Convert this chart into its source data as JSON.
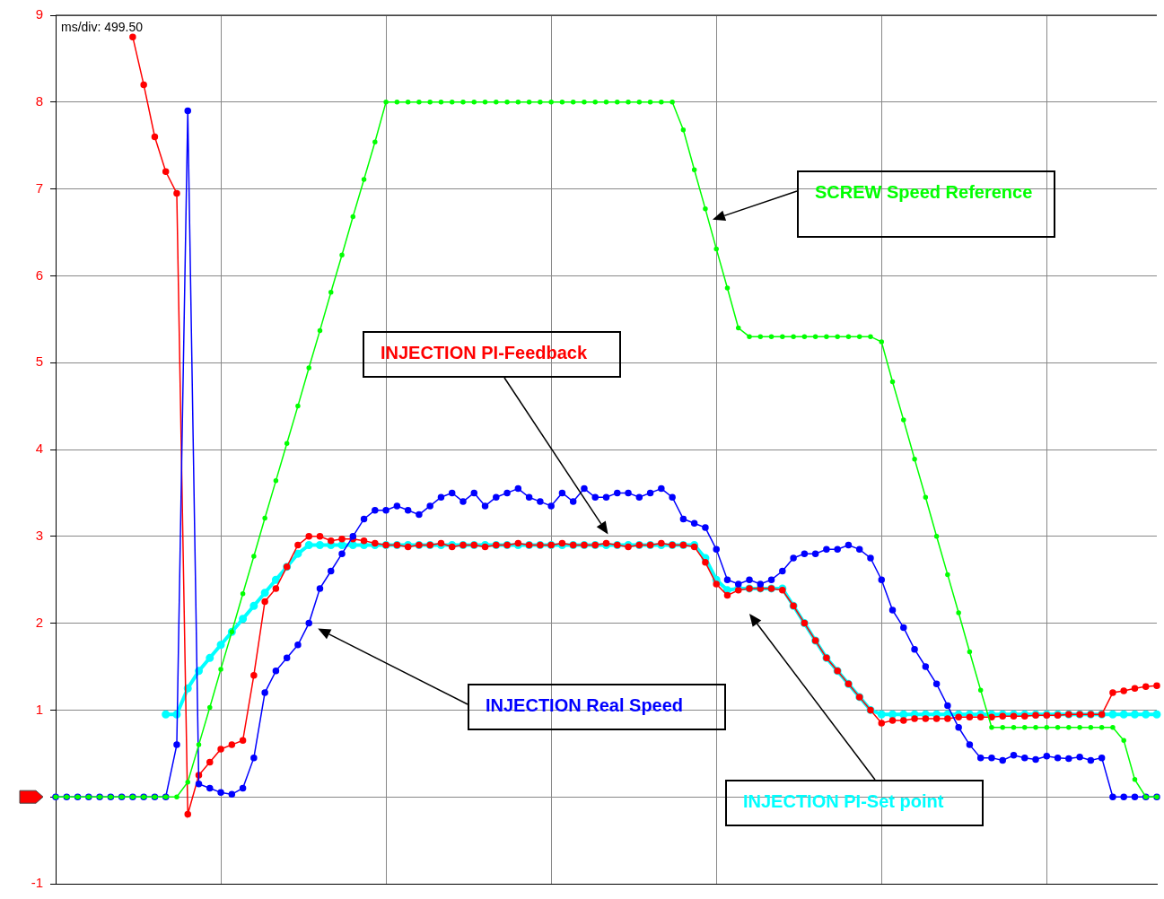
{
  "chart_data": {
    "type": "line",
    "categories": [
      null,
      null,
      null,
      null,
      null,
      null,
      null,
      null,
      null,
      null,
      null,
      null,
      null,
      null,
      null,
      null,
      null,
      null,
      null,
      null,
      null,
      null,
      null,
      null,
      null,
      null,
      null,
      null,
      null,
      null,
      null,
      null,
      null,
      null,
      null,
      null,
      null,
      null,
      null,
      null,
      null,
      null,
      null,
      null,
      null,
      null,
      null,
      null,
      null,
      null,
      null,
      null,
      null,
      null,
      null,
      null,
      null,
      null,
      null,
      null,
      null,
      null,
      null,
      null,
      null,
      null,
      null,
      null,
      null,
      null,
      null,
      null,
      null,
      null,
      null,
      null,
      null,
      null,
      null,
      null,
      null,
      null,
      null,
      null,
      null,
      null,
      null,
      null,
      null,
      null,
      null,
      null,
      null,
      null,
      null,
      null,
      null,
      null,
      null,
      null,
      null
    ],
    "ylim": [
      -1,
      9
    ],
    "yticks": [
      -1,
      {
        "value": 0,
        "label": null
      },
      1,
      2,
      3,
      4,
      5,
      6,
      7,
      8,
      9
    ],
    "tick_labels": "y",
    "grid": true,
    "legend": false,
    "marker": "circle",
    "annotations": [
      "ms/div: 499.50"
    ],
    "series": [
      {
        "name": "INJECTION PI-Set point",
        "color": "#00ffff",
        "values": [
          null,
          null,
          null,
          null,
          null,
          null,
          null,
          null,
          null,
          null,
          0.95,
          0.95,
          1.25,
          1.45,
          1.6,
          1.75,
          1.9,
          2.05,
          2.2,
          2.35,
          2.5,
          2.65,
          2.8,
          2.9,
          2.9,
          2.9,
          2.9,
          2.9,
          2.9,
          2.9,
          2.9,
          2.9,
          2.9,
          2.9,
          2.9,
          2.9,
          2.9,
          2.9,
          2.9,
          2.9,
          2.9,
          2.9,
          2.9,
          2.9,
          2.9,
          2.9,
          2.9,
          2.9,
          2.9,
          2.9,
          2.9,
          2.9,
          2.9,
          2.9,
          2.9,
          2.9,
          2.9,
          2.9,
          2.9,
          2.75,
          2.5,
          2.38,
          2.4,
          2.4,
          2.4,
          2.4,
          2.4,
          2.2,
          2.0,
          1.8,
          1.6,
          1.45,
          1.3,
          1.15,
          1.0,
          0.95,
          0.95,
          0.95,
          0.95,
          0.95,
          0.95,
          0.95,
          0.95,
          0.95,
          0.95,
          0.95,
          0.95,
          0.95,
          0.95,
          0.95,
          0.95,
          0.95,
          0.95,
          0.95,
          0.95,
          0.95,
          0.95,
          0.95,
          0.95,
          0.95,
          0.95
        ]
      },
      {
        "name": "SCREW Speed Reference",
        "color": "#00ff00",
        "values": [
          0,
          0,
          0,
          0,
          0,
          0,
          0,
          0,
          0,
          0,
          0,
          0,
          0.17,
          0.6,
          1.03,
          1.47,
          1.9,
          2.34,
          2.77,
          3.21,
          3.64,
          4.07,
          4.5,
          4.94,
          5.37,
          5.81,
          6.24,
          6.68,
          7.11,
          7.54,
          8,
          8,
          8,
          8,
          8,
          8,
          8,
          8,
          8,
          8,
          8,
          8,
          8,
          8,
          8,
          8,
          8,
          8,
          8,
          8,
          8,
          8,
          8,
          8,
          8,
          8,
          8,
          7.68,
          7.22,
          6.77,
          6.31,
          5.86,
          5.4,
          5.3,
          5.3,
          5.3,
          5.3,
          5.3,
          5.3,
          5.3,
          5.3,
          5.3,
          5.3,
          5.3,
          5.3,
          5.24,
          4.78,
          4.34,
          3.89,
          3.45,
          3.0,
          2.56,
          2.12,
          1.67,
          1.23,
          0.8,
          0.8,
          0.8,
          0.8,
          0.8,
          0.8,
          0.8,
          0.8,
          0.8,
          0.8,
          0.8,
          0.8,
          0.65,
          0.2,
          0,
          0
        ]
      },
      {
        "name": "INJECTION PI-Feedback",
        "color": "#ff0000",
        "values": [
          null,
          null,
          null,
          null,
          null,
          null,
          null,
          8.75,
          8.2,
          7.6,
          7.2,
          6.95,
          -0.2,
          0.25,
          0.4,
          0.55,
          0.6,
          0.65,
          1.4,
          2.25,
          2.4,
          2.65,
          2.9,
          3.0,
          3.0,
          2.95,
          2.97,
          2.97,
          2.95,
          2.92,
          2.9,
          2.9,
          2.88,
          2.9,
          2.9,
          2.92,
          2.88,
          2.9,
          2.9,
          2.88,
          2.9,
          2.9,
          2.92,
          2.9,
          2.9,
          2.9,
          2.92,
          2.9,
          2.9,
          2.9,
          2.92,
          2.9,
          2.88,
          2.9,
          2.9,
          2.92,
          2.9,
          2.9,
          2.88,
          2.7,
          2.45,
          2.32,
          2.38,
          2.4,
          2.4,
          2.4,
          2.38,
          2.2,
          2.0,
          1.8,
          1.6,
          1.45,
          1.3,
          1.15,
          1.0,
          0.85,
          0.88,
          0.88,
          0.9,
          0.9,
          0.9,
          0.9,
          0.92,
          0.92,
          0.92,
          0.92,
          0.93,
          0.93,
          0.93,
          0.94,
          0.94,
          0.94,
          0.95,
          0.95,
          0.95,
          0.95,
          1.2,
          1.22,
          1.25,
          1.27,
          1.28
        ]
      },
      {
        "name": "INJECTION Real Speed",
        "color": "#0000ff",
        "values": [
          0,
          0,
          0,
          0,
          0,
          0,
          0,
          0,
          0,
          0,
          0,
          0.6,
          7.9,
          0.15,
          0.1,
          0.05,
          0.03,
          0.1,
          0.45,
          1.2,
          1.45,
          1.6,
          1.75,
          2.0,
          2.4,
          2.6,
          2.8,
          3.0,
          3.2,
          3.3,
          3.3,
          3.35,
          3.3,
          3.25,
          3.35,
          3.45,
          3.5,
          3.4,
          3.5,
          3.35,
          3.45,
          3.5,
          3.55,
          3.45,
          3.4,
          3.35,
          3.5,
          3.4,
          3.55,
          3.45,
          3.45,
          3.5,
          3.5,
          3.45,
          3.5,
          3.55,
          3.45,
          3.2,
          3.15,
          3.1,
          2.85,
          2.5,
          2.45,
          2.5,
          2.45,
          2.5,
          2.6,
          2.75,
          2.8,
          2.8,
          2.85,
          2.85,
          2.9,
          2.85,
          2.75,
          2.5,
          2.15,
          1.95,
          1.7,
          1.5,
          1.3,
          1.05,
          0.8,
          0.6,
          0.45,
          0.45,
          0.42,
          0.48,
          0.45,
          0.43,
          0.47,
          0.45,
          0.44,
          0.46,
          0.42,
          0.45,
          0,
          0,
          0,
          0,
          0
        ]
      }
    ]
  }
}
